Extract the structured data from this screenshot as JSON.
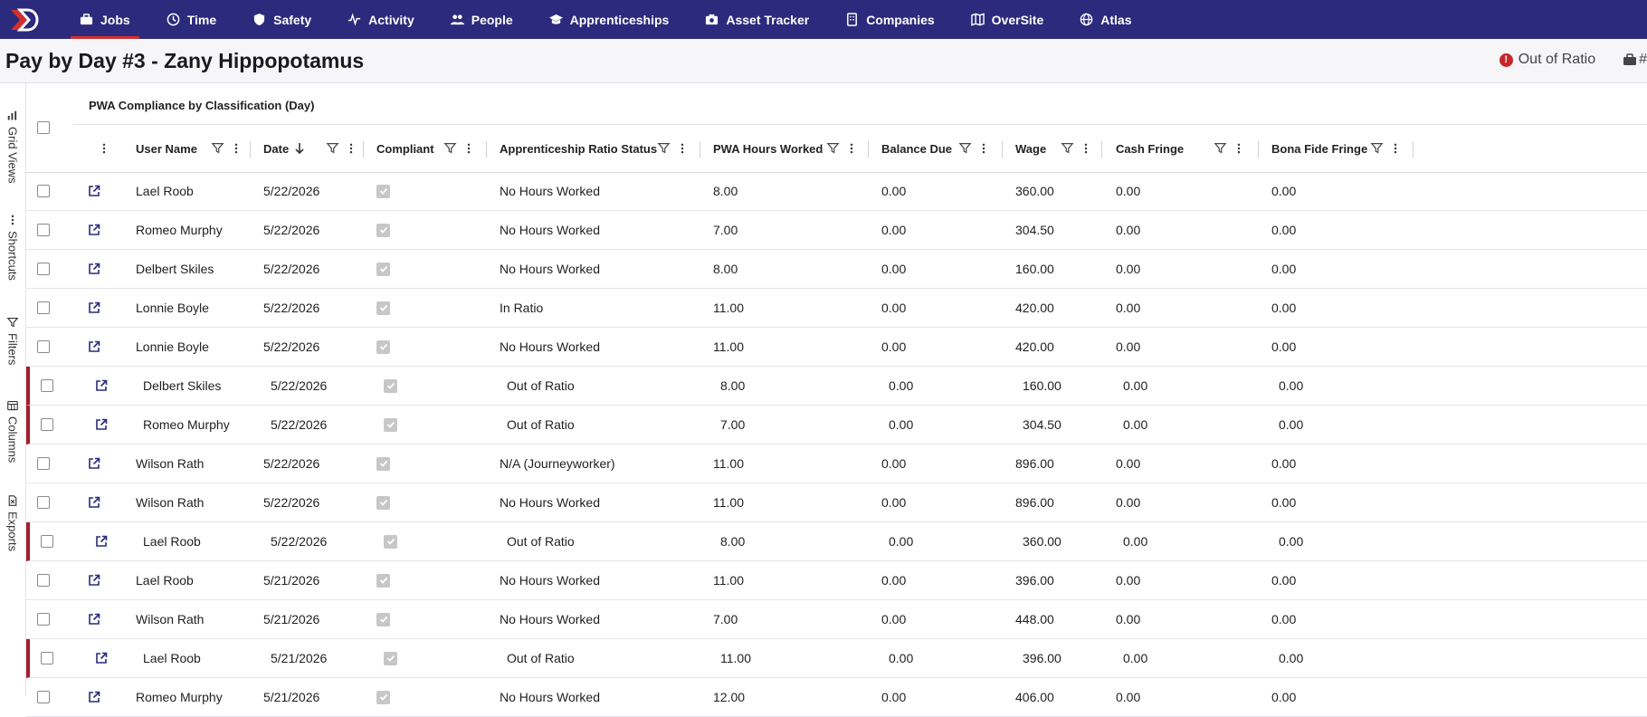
{
  "nav": {
    "items": [
      {
        "label": "Jobs",
        "icon": "briefcase-icon",
        "active": true
      },
      {
        "label": "Time",
        "icon": "clock-icon"
      },
      {
        "label": "Safety",
        "icon": "shield-icon"
      },
      {
        "label": "Activity",
        "icon": "pulse-icon"
      },
      {
        "label": "People",
        "icon": "people-icon"
      },
      {
        "label": "Apprenticeships",
        "icon": "graduation-cap-icon"
      },
      {
        "label": "Asset Tracker",
        "icon": "camera-icon"
      },
      {
        "label": "Companies",
        "icon": "building-icon"
      },
      {
        "label": "OverSite",
        "icon": "map-icon"
      },
      {
        "label": "Atlas",
        "icon": "globe-icon"
      }
    ],
    "accent": "#d32f2f",
    "background": "#2b2a7c"
  },
  "page": {
    "title": "Pay by Day #3 - Zany Hippopotamus",
    "status_label": "Out of Ratio",
    "status_icon": "!",
    "status_color": "#c62828",
    "extra_label": "#"
  },
  "rail": {
    "items": [
      {
        "label": "Grid Views",
        "icon": "grid-views-icon"
      },
      {
        "label": "Shortcuts",
        "icon": "dots-icon"
      },
      {
        "label": "Filters",
        "icon": "filter-icon"
      },
      {
        "label": "Columns",
        "icon": "columns-icon"
      },
      {
        "label": "Exports",
        "icon": "export-icon"
      }
    ]
  },
  "grid": {
    "group_label": "PWA Compliance by Classification (Day)",
    "columns": [
      {
        "key": "user",
        "label": "User Name"
      },
      {
        "key": "date",
        "label": "Date"
      },
      {
        "key": "compliant",
        "label": "Compliant"
      },
      {
        "key": "ratio",
        "label": "Apprenticeship Ratio Status"
      },
      {
        "key": "hours",
        "label": "PWA Hours Worked"
      },
      {
        "key": "balance",
        "label": "Balance Due"
      },
      {
        "key": "wage",
        "label": "Wage"
      },
      {
        "key": "cash",
        "label": "Cash Fringe"
      },
      {
        "key": "bona",
        "label": "Bona Fide Fringe"
      }
    ],
    "flag_color": "#a61c2b",
    "rows": [
      {
        "user": "Lael Roob",
        "date": "5/22/2026",
        "ratio": "No Hours Worked",
        "hours": "8.00",
        "balance": "0.00",
        "wage": "360.00",
        "cash": "0.00",
        "bona": "0.00",
        "flag": false
      },
      {
        "user": "Romeo Murphy",
        "date": "5/22/2026",
        "ratio": "No Hours Worked",
        "hours": "7.00",
        "balance": "0.00",
        "wage": "304.50",
        "cash": "0.00",
        "bona": "0.00",
        "flag": false
      },
      {
        "user": "Delbert Skiles",
        "date": "5/22/2026",
        "ratio": "No Hours Worked",
        "hours": "8.00",
        "balance": "0.00",
        "wage": "160.00",
        "cash": "0.00",
        "bona": "0.00",
        "flag": false
      },
      {
        "user": "Lonnie Boyle",
        "date": "5/22/2026",
        "ratio": "In Ratio",
        "hours": "11.00",
        "balance": "0.00",
        "wage": "420.00",
        "cash": "0.00",
        "bona": "0.00",
        "flag": false
      },
      {
        "user": "Lonnie Boyle",
        "date": "5/22/2026",
        "ratio": "No Hours Worked",
        "hours": "11.00",
        "balance": "0.00",
        "wage": "420.00",
        "cash": "0.00",
        "bona": "0.00",
        "flag": false
      },
      {
        "user": "Delbert Skiles",
        "date": "5/22/2026",
        "ratio": "Out of Ratio",
        "hours": "8.00",
        "balance": "0.00",
        "wage": "160.00",
        "cash": "0.00",
        "bona": "0.00",
        "flag": true
      },
      {
        "user": "Romeo Murphy",
        "date": "5/22/2026",
        "ratio": "Out of Ratio",
        "hours": "7.00",
        "balance": "0.00",
        "wage": "304.50",
        "cash": "0.00",
        "bona": "0.00",
        "flag": true
      },
      {
        "user": "Wilson Rath",
        "date": "5/22/2026",
        "ratio": "N/A (Journeyworker)",
        "hours": "11.00",
        "balance": "0.00",
        "wage": "896.00",
        "cash": "0.00",
        "bona": "0.00",
        "flag": false
      },
      {
        "user": "Wilson Rath",
        "date": "5/22/2026",
        "ratio": "No Hours Worked",
        "hours": "11.00",
        "balance": "0.00",
        "wage": "896.00",
        "cash": "0.00",
        "bona": "0.00",
        "flag": false
      },
      {
        "user": "Lael Roob",
        "date": "5/22/2026",
        "ratio": "Out of Ratio",
        "hours": "8.00",
        "balance": "0.00",
        "wage": "360.00",
        "cash": "0.00",
        "bona": "0.00",
        "flag": true
      },
      {
        "user": "Lael Roob",
        "date": "5/21/2026",
        "ratio": "No Hours Worked",
        "hours": "11.00",
        "balance": "0.00",
        "wage": "396.00",
        "cash": "0.00",
        "bona": "0.00",
        "flag": false
      },
      {
        "user": "Wilson Rath",
        "date": "5/21/2026",
        "ratio": "No Hours Worked",
        "hours": "7.00",
        "balance": "0.00",
        "wage": "448.00",
        "cash": "0.00",
        "bona": "0.00",
        "flag": false
      },
      {
        "user": "Lael Roob",
        "date": "5/21/2026",
        "ratio": "Out of Ratio",
        "hours": "11.00",
        "balance": "0.00",
        "wage": "396.00",
        "cash": "0.00",
        "bona": "0.00",
        "flag": true
      },
      {
        "user": "Romeo Murphy",
        "date": "5/21/2026",
        "ratio": "No Hours Worked",
        "hours": "12.00",
        "balance": "0.00",
        "wage": "406.00",
        "cash": "0.00",
        "bona": "0.00",
        "flag": false
      }
    ]
  }
}
